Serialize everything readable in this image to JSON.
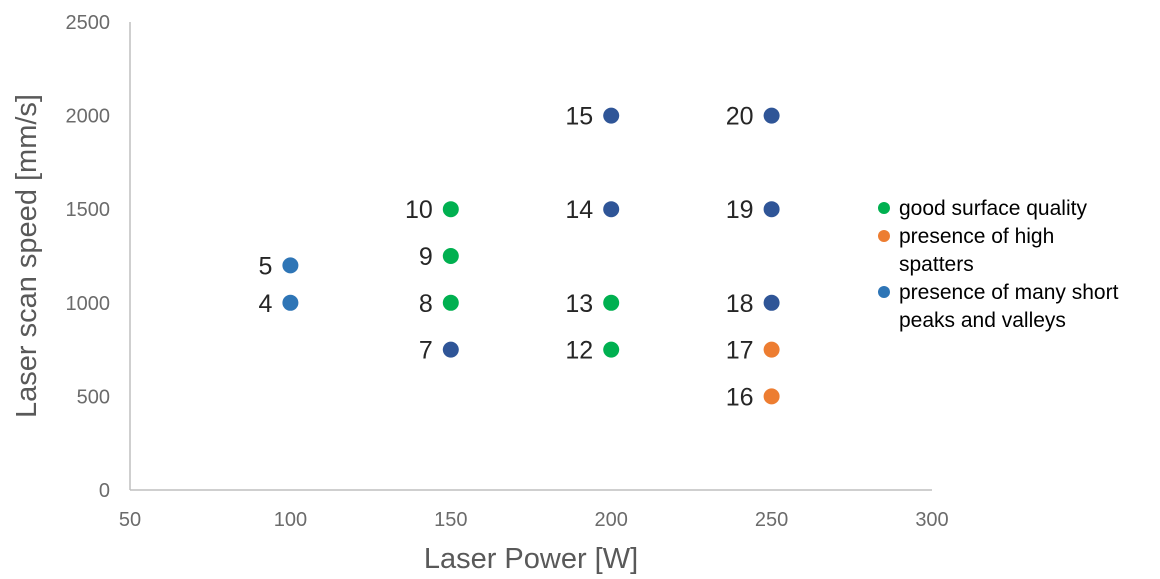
{
  "chart_data": {
    "type": "scatter",
    "title": "",
    "xlabel": "Laser Power [W]",
    "ylabel": "Laser scan speed [mm/s]",
    "xlim": [
      50,
      300
    ],
    "ylim": [
      0,
      2500
    ],
    "x_ticks": [
      "50",
      "100",
      "150",
      "200",
      "250",
      "300"
    ],
    "y_ticks": [
      "0",
      "500",
      "1000",
      "1500",
      "2000",
      "2500"
    ],
    "grid": false,
    "legend_position": "right",
    "series": [
      {
        "name": "good surface quality",
        "color": "#00b050",
        "points": [
          {
            "x": 150,
            "y": 1000,
            "label": "8"
          },
          {
            "x": 150,
            "y": 1250,
            "label": "9"
          },
          {
            "x": 150,
            "y": 1500,
            "label": "10"
          },
          {
            "x": 200,
            "y": 750,
            "label": "12"
          },
          {
            "x": 200,
            "y": 1000,
            "label": "13"
          }
        ]
      },
      {
        "name": "presence of high spatters",
        "legend_lines": [
          "presence of high",
          "spatters"
        ],
        "color": "#ed7d31",
        "points": [
          {
            "x": 250,
            "y": 500,
            "label": "16"
          },
          {
            "x": 250,
            "y": 750,
            "label": "17"
          }
        ]
      },
      {
        "name": "presence of many short peaks and valleys",
        "legend_lines": [
          "presence of many short",
          "peaks and valleys"
        ],
        "color": "#2e75b6",
        "points": [
          {
            "x": 100,
            "y": 1000,
            "label": "4"
          },
          {
            "x": 100,
            "y": 1200,
            "label": "5"
          }
        ]
      },
      {
        "name": "",
        "color": "#2f5597",
        "points": [
          {
            "x": 150,
            "y": 750,
            "label": "7"
          },
          {
            "x": 200,
            "y": 1500,
            "label": "14"
          },
          {
            "x": 200,
            "y": 2000,
            "label": "15"
          },
          {
            "x": 250,
            "y": 1000,
            "label": "18"
          },
          {
            "x": 250,
            "y": 1500,
            "label": "19"
          },
          {
            "x": 250,
            "y": 2000,
            "label": "20"
          }
        ]
      }
    ]
  }
}
